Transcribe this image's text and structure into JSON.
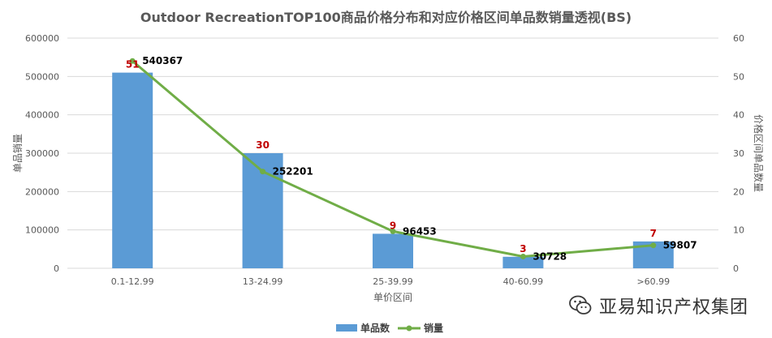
{
  "chart_data": {
    "type": "bar",
    "title": "Outdoor RecreationTOP100商品价格分布和对应价格区间单品数销量透视(BS)",
    "categories": [
      "0.1-12.99",
      "13-24.99",
      "25-39.99",
      "40-60.99",
      ">60.99"
    ],
    "series": [
      {
        "name": "单品数",
        "type": "bar",
        "axis": "right",
        "color": "#5b9bd5",
        "values": [
          51,
          30,
          9,
          3,
          7
        ]
      },
      {
        "name": "销量",
        "type": "line",
        "axis": "left",
        "color": "#70ad47",
        "values": [
          540367,
          252201,
          96453,
          30728,
          59807
        ]
      }
    ],
    "xlabel": "单价区间",
    "ylabel": "单品销量",
    "y2label": "价格区间单品数量",
    "ylim": [
      0,
      600000
    ],
    "yticks": [
      "0",
      "100000",
      "200000",
      "300000",
      "400000",
      "500000",
      "600000"
    ],
    "y2lim": [
      0,
      60
    ],
    "y2ticks": [
      "0",
      "10",
      "20",
      "30",
      "40",
      "50",
      "60"
    ],
    "grid": true,
    "legend": "bottom"
  },
  "watermark": {
    "text": "亚易知识产权集团",
    "icon": "wechat-icon"
  }
}
